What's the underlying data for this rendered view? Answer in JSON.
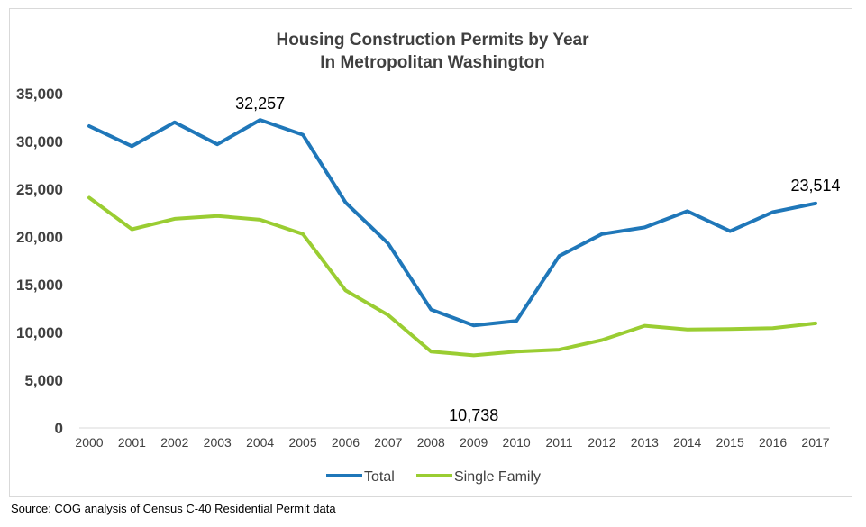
{
  "chart_data": {
    "type": "line",
    "title": "Housing Construction Permits by Year",
    "subtitle": "In Metropolitan Washington",
    "categories": [
      "2000",
      "2001",
      "2002",
      "2003",
      "2004",
      "2005",
      "2006",
      "2007",
      "2008",
      "2009",
      "2010",
      "2011",
      "2012",
      "2013",
      "2014",
      "2015",
      "2016",
      "2017"
    ],
    "series": [
      {
        "name": "Total",
        "color": "#1f77b9",
        "values": [
          31600,
          29500,
          32000,
          29700,
          32257,
          30700,
          23600,
          19300,
          12400,
          10738,
          11200,
          18000,
          20300,
          21000,
          22700,
          20600,
          22600,
          23514
        ]
      },
      {
        "name": "Single Family",
        "color": "#9acd32",
        "values": [
          24100,
          20800,
          21900,
          22200,
          21800,
          20300,
          14400,
          11800,
          8000,
          7600,
          8000,
          8200,
          9200,
          10700,
          10300,
          10350,
          10450,
          10950
        ]
      }
    ],
    "yticks": [
      "0",
      "5,000",
      "10,000",
      "15,000",
      "20,000",
      "25,000",
      "30,000",
      "35,000"
    ],
    "ylim": [
      0,
      35000
    ],
    "grid": false,
    "legend": "bottom",
    "annotations": [
      {
        "text": "32,257",
        "series": 0,
        "index": 4
      },
      {
        "text": "10,738",
        "series": 0,
        "index": 9
      },
      {
        "text": "23,514",
        "series": 0,
        "index": 17
      }
    ]
  },
  "source_note": "Source: COG analysis of Census C-40 Residential Permit data"
}
